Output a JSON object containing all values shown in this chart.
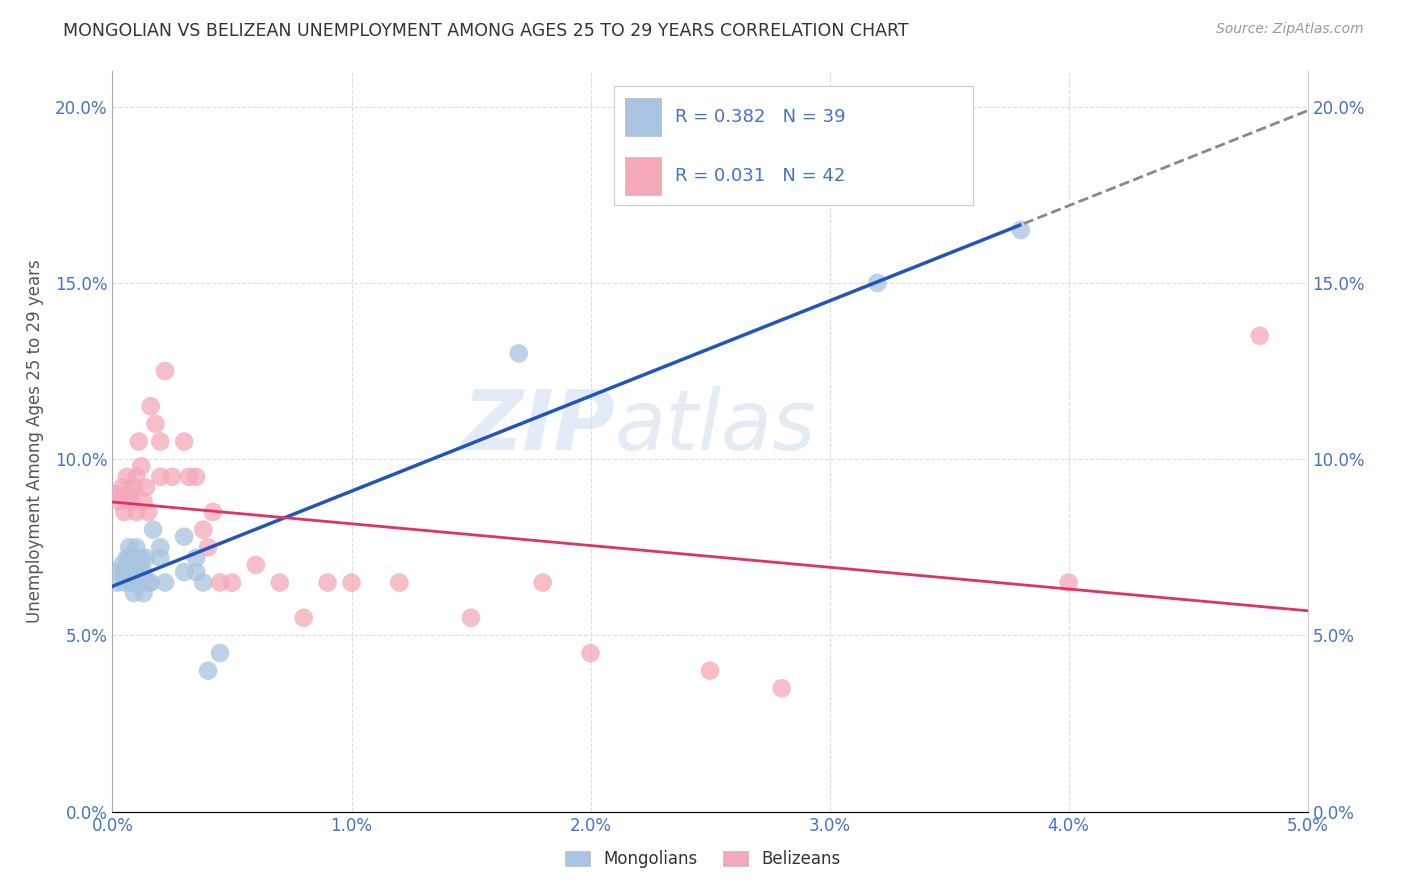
{
  "title": "MONGOLIAN VS BELIZEAN UNEMPLOYMENT AMONG AGES 25 TO 29 YEARS CORRELATION CHART",
  "source": "Source: ZipAtlas.com",
  "ylabel": "Unemployment Among Ages 25 to 29 years",
  "xlim": [
    0.0,
    0.05
  ],
  "ylim": [
    0.0,
    0.21
  ],
  "xticks": [
    0.0,
    0.01,
    0.02,
    0.03,
    0.04,
    0.05
  ],
  "yticks": [
    0.0,
    0.05,
    0.1,
    0.15,
    0.2
  ],
  "mongolian_R": "0.382",
  "mongolian_N": "39",
  "belizean_R": "0.031",
  "belizean_N": "42",
  "mongolian_color": "#a8c4e0",
  "belizean_color": "#f4a8b8",
  "mongolian_line_color": "#2255bb",
  "belizean_line_color": "#dd3366",
  "mongolian_x": [
    0.0002,
    0.0003,
    0.0004,
    0.0005,
    0.0005,
    0.0006,
    0.0006,
    0.0007,
    0.0007,
    0.0007,
    0.0008,
    0.0008,
    0.0009,
    0.0009,
    0.001,
    0.001,
    0.001,
    0.001,
    0.0012,
    0.0012,
    0.0013,
    0.0013,
    0.0014,
    0.0015,
    0.0016,
    0.0017,
    0.002,
    0.002,
    0.0022,
    0.003,
    0.003,
    0.0035,
    0.0035,
    0.0038,
    0.004,
    0.0045,
    0.017,
    0.032,
    0.038
  ],
  "mongolian_y": [
    0.065,
    0.068,
    0.07,
    0.065,
    0.068,
    0.068,
    0.072,
    0.072,
    0.068,
    0.075,
    0.065,
    0.07,
    0.062,
    0.065,
    0.065,
    0.068,
    0.072,
    0.075,
    0.068,
    0.072,
    0.062,
    0.068,
    0.072,
    0.065,
    0.065,
    0.08,
    0.072,
    0.075,
    0.065,
    0.078,
    0.068,
    0.068,
    0.072,
    0.065,
    0.04,
    0.045,
    0.13,
    0.15,
    0.165
  ],
  "belizean_x": [
    0.0002,
    0.0003,
    0.0004,
    0.0005,
    0.0006,
    0.0007,
    0.0008,
    0.0009,
    0.001,
    0.001,
    0.0011,
    0.0012,
    0.0013,
    0.0014,
    0.0015,
    0.0016,
    0.0018,
    0.002,
    0.002,
    0.0022,
    0.0025,
    0.003,
    0.0032,
    0.0035,
    0.0038,
    0.004,
    0.0042,
    0.0045,
    0.005,
    0.006,
    0.007,
    0.008,
    0.009,
    0.01,
    0.012,
    0.015,
    0.018,
    0.02,
    0.025,
    0.028,
    0.04,
    0.048
  ],
  "belizean_y": [
    0.09,
    0.088,
    0.092,
    0.085,
    0.095,
    0.09,
    0.088,
    0.092,
    0.085,
    0.095,
    0.105,
    0.098,
    0.088,
    0.092,
    0.085,
    0.115,
    0.11,
    0.095,
    0.105,
    0.125,
    0.095,
    0.105,
    0.095,
    0.095,
    0.08,
    0.075,
    0.085,
    0.065,
    0.065,
    0.07,
    0.065,
    0.055,
    0.065,
    0.065,
    0.065,
    0.055,
    0.065,
    0.045,
    0.04,
    0.035,
    0.065,
    0.135
  ],
  "watermark_zi": "ZIP",
  "watermark_atlas": "atlas",
  "background_color": "#ffffff",
  "grid_color": "#dddddd",
  "tick_color": "#4472c4",
  "label_color": "#555555"
}
